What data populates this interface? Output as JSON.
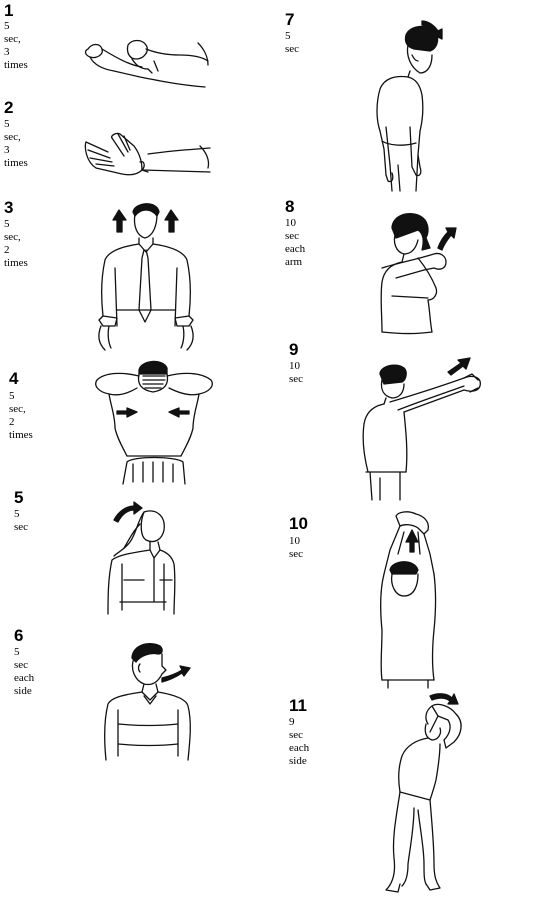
{
  "exercises": [
    {
      "number": "1",
      "caption": "5 sec, 3 times",
      "figure": "wrist-flexion-stretch"
    },
    {
      "number": "2",
      "caption": "5 sec, 3 times",
      "figure": "wrist-extension-stretch"
    },
    {
      "number": "3",
      "caption": "5 sec, 2 times",
      "figure": "shoulder-shrug"
    },
    {
      "number": "4",
      "caption": "5 sec, 2 times",
      "figure": "shoulder-blade-squeeze"
    },
    {
      "number": "5",
      "caption": "5 sec",
      "figure": "head-turn"
    },
    {
      "number": "6",
      "caption": "5 sec\neach side",
      "figure": "neck-rotation"
    },
    {
      "number": "7",
      "caption": "5 sec",
      "figure": "neck-side-tilt"
    },
    {
      "number": "8",
      "caption": "10 sec\neach arm",
      "figure": "elbow-across-chest"
    },
    {
      "number": "9",
      "caption": "10 sec",
      "figure": "arms-forward-stretch"
    },
    {
      "number": "10",
      "caption": "10 sec",
      "figure": "arms-overhead-stretch"
    },
    {
      "number": "11",
      "caption": "9 sec\neach side",
      "figure": "side-bend-stretch"
    }
  ]
}
